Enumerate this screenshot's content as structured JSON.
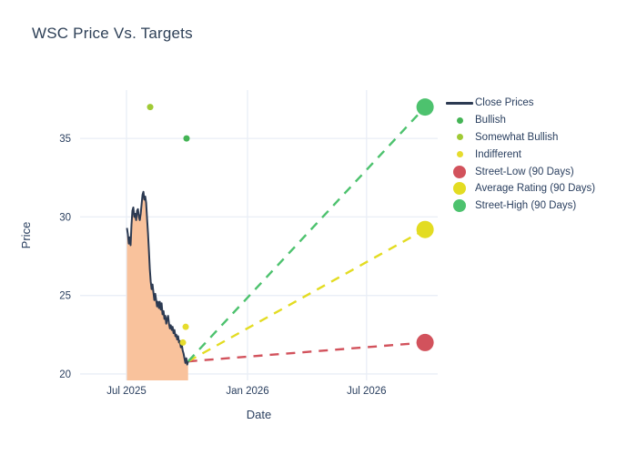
{
  "title": "WSC Price Vs. Targets",
  "colors": {
    "text": "#2a3f5f",
    "title_text": "#2e4057",
    "gridline": "#e9eef6",
    "close_line": "#2c3a52",
    "close_fill": "#f9c29c",
    "bullish": "#44b455",
    "somewhat_bullish": "#a0ca35",
    "indifferent": "#e6dc2d",
    "street_low": "#d2525c",
    "average_rating": "#e3dc22",
    "street_high": "#4dc26e",
    "background": "#ffffff"
  },
  "legend": {
    "items": [
      {
        "label": "Close Prices",
        "kind": "line",
        "color": "#2c3a52"
      },
      {
        "label": "Bullish",
        "kind": "dot",
        "color": "#44b455"
      },
      {
        "label": "Somewhat Bullish",
        "kind": "dot",
        "color": "#a0ca35"
      },
      {
        "label": "Indifferent",
        "kind": "dot",
        "color": "#e6dc2d"
      },
      {
        "label": "Street-Low (90 Days)",
        "kind": "big-dot",
        "color": "#d2525c"
      },
      {
        "label": "Average Rating (90 Days)",
        "kind": "big-dot",
        "color": "#e3dc22"
      },
      {
        "label": "Street-High (90 Days)",
        "kind": "big-dot",
        "color": "#4dc26e"
      }
    ]
  },
  "chart_data": {
    "type": "line",
    "title": "WSC Price Vs. Targets",
    "xlabel": "Date",
    "ylabel": "Price",
    "grid": true,
    "legend_position": "right",
    "x_ticks": [
      {
        "label": "Jul 2025",
        "day": 0
      },
      {
        "label": "Jan 2026",
        "day": 184
      },
      {
        "label": "Jul 2026",
        "day": 365
      }
    ],
    "y_ticks": [
      20,
      25,
      30,
      35
    ],
    "x_range_days": [
      -70.6,
      473.2
    ],
    "y_range": [
      19.59,
      38.08
    ],
    "close_series": {
      "name": "Close Prices",
      "day_start": 0.7,
      "day_step": 1.388,
      "last_close": 20.8,
      "values": [
        29.3,
        28.9,
        28.3,
        28.7,
        28.2,
        29.5,
        30.4,
        30.6,
        30.0,
        30.2,
        29.8,
        30.4,
        30.5,
        30.0,
        29.8,
        30.2,
        30.8,
        31.4,
        31.6,
        31.1,
        31.3,
        30.9,
        29.9,
        29.0,
        27.9,
        26.7,
        25.9,
        25.4,
        25.7,
        25.2,
        24.7,
        25.1,
        24.7,
        24.3,
        24.6,
        24.2,
        24.6,
        24.1,
        24.5,
        23.8,
        24.0,
        23.5,
        23.7,
        23.2,
        23.5,
        23.7,
        23.2,
        22.9,
        23.1,
        22.8,
        23.0,
        22.6,
        22.8,
        22.4,
        22.5,
        22.2,
        22.4,
        22.0,
        22.1,
        21.7,
        21.9,
        21.5,
        21.3,
        21.0,
        20.7,
        21.0,
        20.6,
        20.8
      ]
    },
    "rating_points": [
      {
        "name": "Somewhat Bullish",
        "day": 36.0,
        "price": 37.0,
        "color": "#a0ca35"
      },
      {
        "name": "Bullish",
        "day": 91.3,
        "price": 35.0,
        "color": "#44b455"
      },
      {
        "name": "Indifferent",
        "day": 90.0,
        "price": 23.0,
        "color": "#e6dc2d"
      },
      {
        "name": "Indifferent",
        "day": 85.8,
        "price": 22.0,
        "color": "#e6dc2d"
      }
    ],
    "targets": [
      {
        "name": "Street-Low (90 Days)",
        "day": 454,
        "price": 22.0,
        "color": "#d2525c"
      },
      {
        "name": "Average Rating (90 Days)",
        "day": 454,
        "price": 29.2,
        "color": "#e3dc22"
      },
      {
        "name": "Street-High (90 Days)",
        "day": 454,
        "price": 37.0,
        "color": "#4dc26e"
      }
    ]
  }
}
